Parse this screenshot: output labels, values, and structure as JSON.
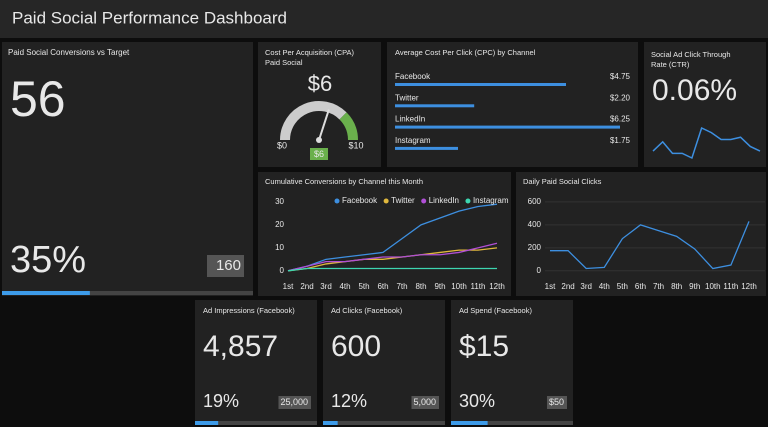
{
  "header": {
    "title": "Paid Social Performance Dashboard"
  },
  "conversions": {
    "title": "Paid Social Conversions vs Target",
    "value": "56",
    "percent": {
      "value": 35,
      "label": "35%"
    },
    "target": "160"
  },
  "cpa": {
    "title": [
      "Cost Per Acquisition (CPA)",
      "Paid Social"
    ],
    "value": "$6",
    "gauge": {
      "min": {
        "value": 0,
        "label": "$0"
      },
      "max": {
        "value": 10,
        "label": "$10"
      },
      "value": 6,
      "value_label": "$6",
      "green_from": 7.5
    }
  },
  "cpc": {
    "title": "Average Cost Per Click (CPC) by Channel",
    "chart_data": {
      "type": "hbar",
      "categories": [
        "Facebook",
        "Twitter",
        "LinkedIn",
        "Instagram"
      ],
      "values": [
        4.75,
        2.2,
        6.25,
        1.75
      ],
      "value_labels": [
        "$4.75",
        "$2.20",
        "$6.25",
        "$1.75"
      ],
      "color": "#3d8fe0"
    }
  },
  "ctr": {
    "title": [
      "Social Ad Click Through",
      "Rate (CTR)"
    ],
    "value": "0.06%",
    "chart_data": {
      "type": "sparkline",
      "values": [
        10,
        14,
        9,
        9,
        7,
        20,
        18,
        15,
        15,
        16,
        12,
        10
      ],
      "color": "#3d8fe0"
    }
  },
  "cumulative": {
    "title": "Cumulative Conversions by Channel this Month",
    "chart_data": {
      "type": "line",
      "categories": [
        "1st",
        "2nd",
        "3rd",
        "4th",
        "5th",
        "6th",
        "7th",
        "8th",
        "9th",
        "10th",
        "11th",
        "12th"
      ],
      "ylim": [
        -4,
        33
      ],
      "yticks": [
        0,
        10,
        20,
        30
      ],
      "legend": "top-right",
      "series": [
        {
          "name": "Facebook",
          "color": "#3d8fe0",
          "values": [
            0,
            2,
            5,
            6,
            7,
            8,
            14,
            20,
            23,
            26,
            28,
            29
          ]
        },
        {
          "name": "Twitter",
          "color": "#e0b83d",
          "values": [
            0,
            1,
            3,
            4,
            5,
            5,
            6,
            7,
            8,
            9,
            9,
            10
          ]
        },
        {
          "name": "LinkedIn",
          "color": "#b04fd6",
          "values": [
            0,
            2,
            4,
            4,
            5,
            6,
            6,
            7,
            7,
            8,
            10,
            12
          ]
        },
        {
          "name": "Instagram",
          "color": "#3dd6b0",
          "values": [
            0,
            1,
            1,
            1,
            1,
            1,
            1,
            1,
            1,
            1,
            1,
            1
          ]
        }
      ]
    }
  },
  "daily": {
    "title": "Daily Paid Social Clicks",
    "chart_data": {
      "type": "line",
      "categories": [
        "1st",
        "2nd",
        "3rd",
        "4th",
        "5th",
        "6th",
        "7th",
        "8th",
        "9th",
        "10th",
        "11th",
        "12th"
      ],
      "ylim": [
        -80,
        660
      ],
      "yticks": [
        0,
        200,
        400,
        600
      ],
      "grid": true,
      "series": [
        {
          "color": "#3d8fe0",
          "values": [
            175,
            175,
            20,
            30,
            280,
            400,
            350,
            300,
            190,
            20,
            50,
            430
          ]
        }
      ]
    }
  },
  "tiles": [
    {
      "title": "Ad Impressions (Facebook)",
      "value": "4,857",
      "percent": {
        "value": 19,
        "label": "19%"
      },
      "target": "25,000"
    },
    {
      "title": "Ad Clicks (Facebook)",
      "value": "600",
      "percent": {
        "value": 12,
        "label": "12%"
      },
      "target": "5,000"
    },
    {
      "title": "Ad Spend (Facebook)",
      "value": "$15",
      "percent": {
        "value": 30,
        "label": "30%"
      },
      "target": "$50"
    }
  ]
}
